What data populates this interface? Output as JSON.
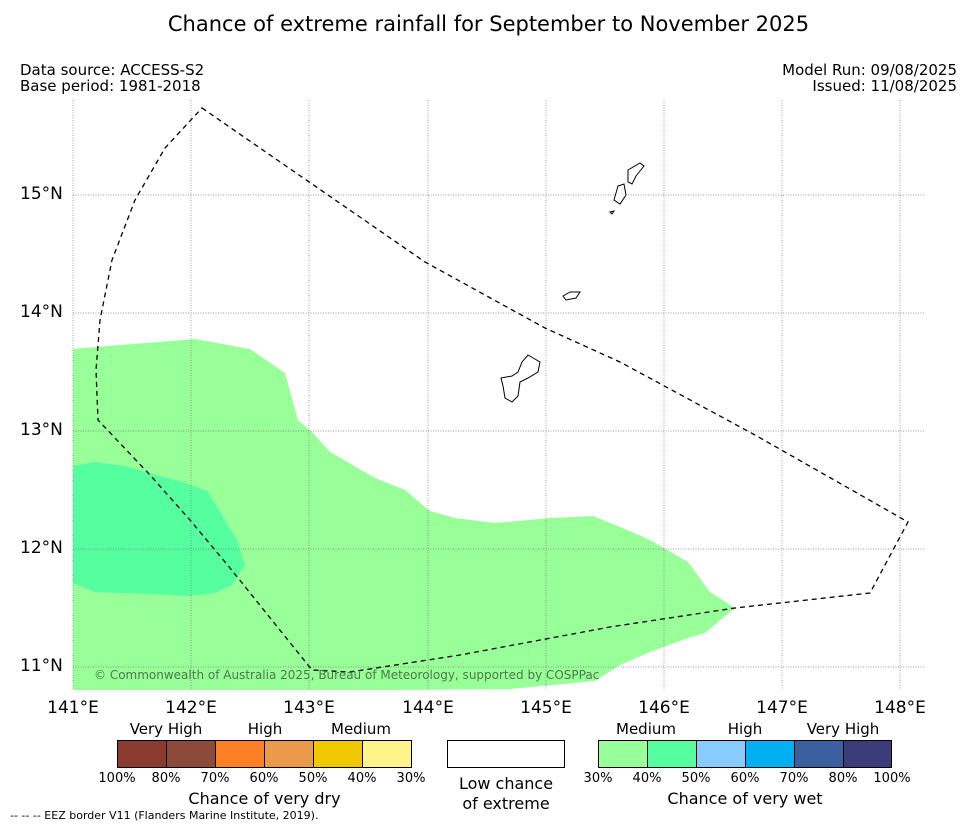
{
  "title": "Chance of extreme rainfall for September to November 2025",
  "data_source": "Data source: ACCESS-S2",
  "base_period": "Base period: 1981-2018",
  "model_run": "Model Run: 09/08/2025",
  "issued": "Issued: 11/08/2025",
  "map": {
    "lon_labels": [
      "141°E",
      "142°E",
      "143°E",
      "144°E",
      "145°E",
      "146°E",
      "147°E",
      "148°E"
    ],
    "lat_labels": [
      "15°N",
      "14°N",
      "13°N",
      "12°N",
      "11°N"
    ],
    "copyright": "© Commonwealth of Australia 2025, Bureau of Meteorology, supported by COSPPac",
    "colors": {
      "medium_wet": "#99ff99",
      "high_wet": "#55ffa0",
      "eez": "#000000"
    }
  },
  "legend": {
    "dry": {
      "categories": [
        "Very High",
        "High",
        "Medium"
      ],
      "percents": [
        "100%",
        "80%",
        "70%",
        "60%",
        "50%",
        "40%",
        "30%"
      ],
      "colors": [
        "#8b3a30",
        "#8b4a3a",
        "#ff8024",
        "#eb9a4a",
        "#f0c800",
        "#fff48a"
      ],
      "title": "Chance of very dry"
    },
    "low": {
      "line1": "Low chance",
      "line2": "of extreme"
    },
    "wet": {
      "categories": [
        "Medium",
        "High",
        "Very High"
      ],
      "percents": [
        "30%",
        "40%",
        "50%",
        "60%",
        "70%",
        "80%",
        "100%"
      ],
      "colors": [
        "#99ff99",
        "#55ffa0",
        "#88ccff",
        "#00b0f0",
        "#3a60a0",
        "#3c3c78"
      ],
      "title": "Chance of very wet"
    }
  },
  "footnote": "--  --  -- EEZ border V11 (Flanders Marine Institute, 2019)."
}
